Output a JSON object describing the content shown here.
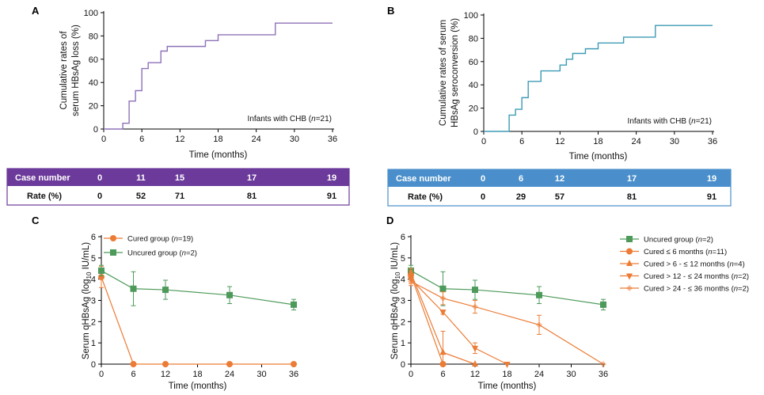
{
  "colors": {
    "purple": "#8e72b8",
    "purple_band": "#6b3a9a",
    "teal": "#3d9bb5",
    "blue_band": "#4a8fcb",
    "orange": "#ec7c35",
    "green": "#4e9a5b"
  },
  "chart_data": [
    {
      "panel": "A",
      "type": "line",
      "step": true,
      "ylabel_lines": [
        "Cumulative rates of",
        "serum HBsAg loss (%)"
      ],
      "xlabel": "Time (months)",
      "xticks": [
        0,
        6,
        12,
        18,
        24,
        30,
        36
      ],
      "yticks": [
        0,
        20,
        40,
        60,
        80,
        100
      ],
      "xlim": [
        0,
        36
      ],
      "ylim": [
        0,
        100
      ],
      "annotation": "Infants with CHB (n=21)",
      "series": [
        {
          "x": [
            0,
            3,
            4,
            5,
            6,
            7,
            9,
            10,
            16,
            18,
            27,
            36
          ],
          "y": [
            0,
            5,
            24,
            33,
            52,
            57,
            67,
            71,
            76,
            81,
            91,
            91
          ]
        }
      ],
      "table": {
        "header_label": "Case number",
        "rate_label": "Rate (%)",
        "case_numbers": [
          "0",
          "11",
          "15",
          "17",
          "19"
        ],
        "rates": [
          "0",
          "52",
          "71",
          "81",
          "91"
        ]
      }
    },
    {
      "panel": "B",
      "type": "line",
      "step": true,
      "ylabel_lines": [
        "Cumulative rates of serum",
        "HBsAg seroconversion (%)"
      ],
      "xlabel": "Time (months)",
      "xticks": [
        0,
        6,
        12,
        18,
        24,
        30,
        36
      ],
      "yticks": [
        0,
        20,
        40,
        60,
        80,
        100
      ],
      "xlim": [
        0,
        36
      ],
      "ylim": [
        0,
        100
      ],
      "annotation": "Infants with CHB (n=21)",
      "series": [
        {
          "x": [
            0,
            4,
            5,
            6,
            7,
            9,
            12,
            13,
            14,
            16,
            18,
            22,
            27,
            36
          ],
          "y": [
            0,
            14,
            19,
            29,
            43,
            52,
            57,
            62,
            67,
            71,
            76,
            81,
            91,
            91
          ]
        }
      ],
      "table": {
        "header_label": "Case number",
        "rate_label": "Rate (%)",
        "case_numbers": [
          "0",
          "6",
          "12",
          "17",
          "19"
        ],
        "rates": [
          "0",
          "29",
          "57",
          "81",
          "91"
        ]
      }
    },
    {
      "panel": "C",
      "type": "line",
      "ylabel": "Serum qHBsAg (log10 IU/mL)",
      "xlabel": "Time (months)",
      "xticks": [
        0,
        6,
        12,
        18,
        24,
        30,
        36
      ],
      "yticks": [
        0,
        1,
        2,
        3,
        4,
        5,
        6
      ],
      "xlim": [
        0,
        36
      ],
      "ylim": [
        0,
        6
      ],
      "series": [
        {
          "name": "Cured group (n=19)",
          "color": "orange",
          "marker": "circle",
          "x": [
            0,
            6,
            12,
            24,
            36
          ],
          "y": [
            4.1,
            0,
            0,
            0,
            0
          ],
          "err": [
            0.5,
            0,
            0,
            0,
            0
          ]
        },
        {
          "name": "Uncured group (n=2)",
          "color": "green",
          "marker": "square",
          "x": [
            0,
            6,
            12,
            24,
            36
          ],
          "y": [
            4.4,
            3.55,
            3.5,
            3.25,
            2.8
          ],
          "err": [
            0.25,
            0.8,
            0.45,
            0.4,
            0.25
          ]
        }
      ]
    },
    {
      "panel": "D",
      "type": "line",
      "ylabel": "Serum qHBsAg (log10 IU/mL)",
      "xlabel": "Time (months)",
      "xticks": [
        0,
        6,
        12,
        18,
        24,
        30,
        36
      ],
      "yticks": [
        0,
        1,
        2,
        3,
        4,
        5,
        6
      ],
      "xlim": [
        0,
        36
      ],
      "ylim": [
        0,
        6
      ],
      "series": [
        {
          "name": "Uncured group (n=2)",
          "color": "green",
          "marker": "square",
          "x": [
            0,
            6,
            12,
            24,
            36
          ],
          "y": [
            4.4,
            3.55,
            3.5,
            3.25,
            2.8
          ],
          "err": [
            0.25,
            0.8,
            0.45,
            0.4,
            0.25
          ]
        },
        {
          "name": "Cured ≤ 6 months (n=11)",
          "color": "orange",
          "marker": "circle",
          "x": [
            0,
            6
          ],
          "y": [
            4.2,
            0
          ],
          "err": [
            0.2,
            0
          ]
        },
        {
          "name": "Cured > 6 - ≤ 12 months (n=4)",
          "color": "orange",
          "marker": "triangle-up",
          "x": [
            0,
            6,
            12
          ],
          "y": [
            4.3,
            0.55,
            0
          ],
          "err": [
            0.2,
            1.0,
            0
          ]
        },
        {
          "name": "Cured > 12 - ≤ 24 months (n=2)",
          "color": "orange",
          "marker": "triangle-down",
          "x": [
            0,
            6,
            12,
            18
          ],
          "y": [
            4.0,
            2.45,
            0.75,
            0
          ],
          "err": [
            0.2,
            0.1,
            0.25,
            0
          ]
        },
        {
          "name": "Cured > 24 - ≤ 36 months (n=2)",
          "color": "orange",
          "marker": "diamond",
          "x": [
            0,
            6,
            12,
            24,
            36
          ],
          "y": [
            3.9,
            3.1,
            2.7,
            1.85,
            0
          ],
          "err": [
            0.2,
            0.3,
            0.3,
            0.45,
            0
          ]
        }
      ]
    }
  ]
}
